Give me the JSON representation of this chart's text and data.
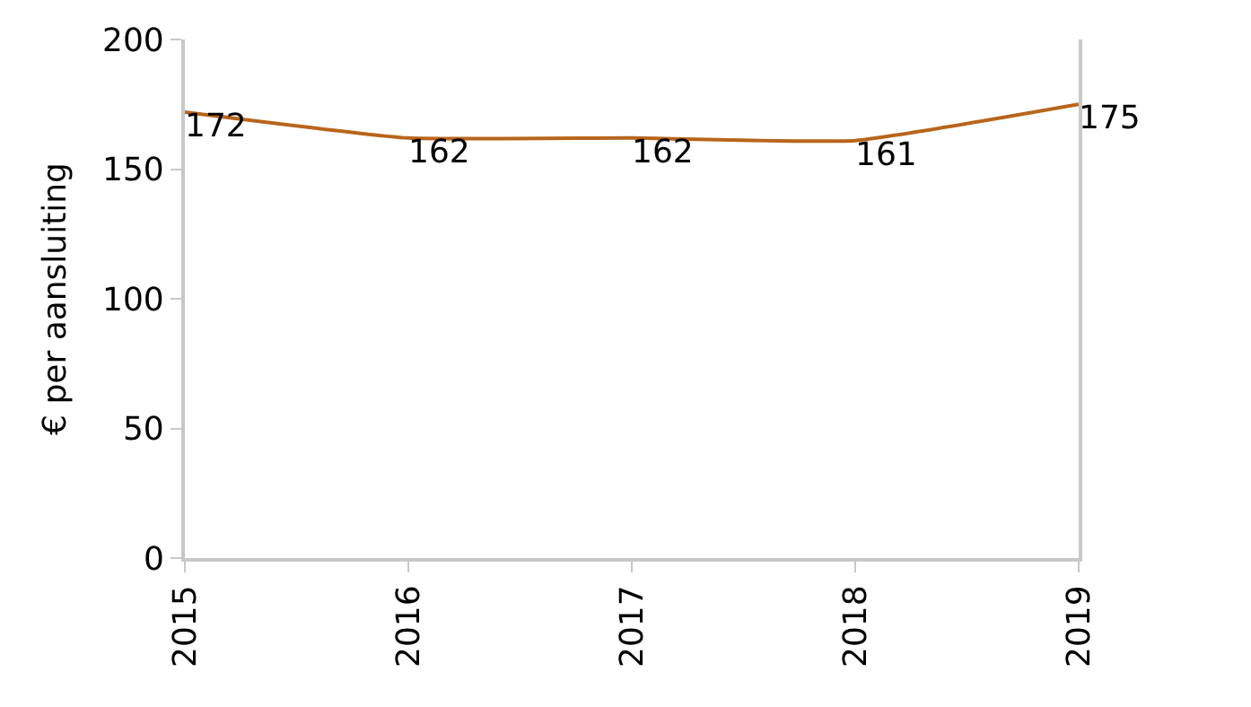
{
  "chart_data": {
    "type": "line",
    "ylabel": "€ per aansluiting",
    "x": [
      2015,
      2016,
      2017,
      2018,
      2019
    ],
    "series": [
      {
        "color": "#b8651b",
        "values": [
          172,
          162,
          162,
          161,
          175
        ]
      }
    ],
    "xlim": [
      2015,
      2019
    ],
    "xticks": [
      2015,
      2016,
      2017,
      2018,
      2019
    ],
    "ylim": [
      0,
      200
    ],
    "yticks": [
      0,
      50,
      100,
      150,
      200
    ],
    "data_labels": true,
    "legend": false,
    "marker": "none",
    "line_style": "solid"
  }
}
